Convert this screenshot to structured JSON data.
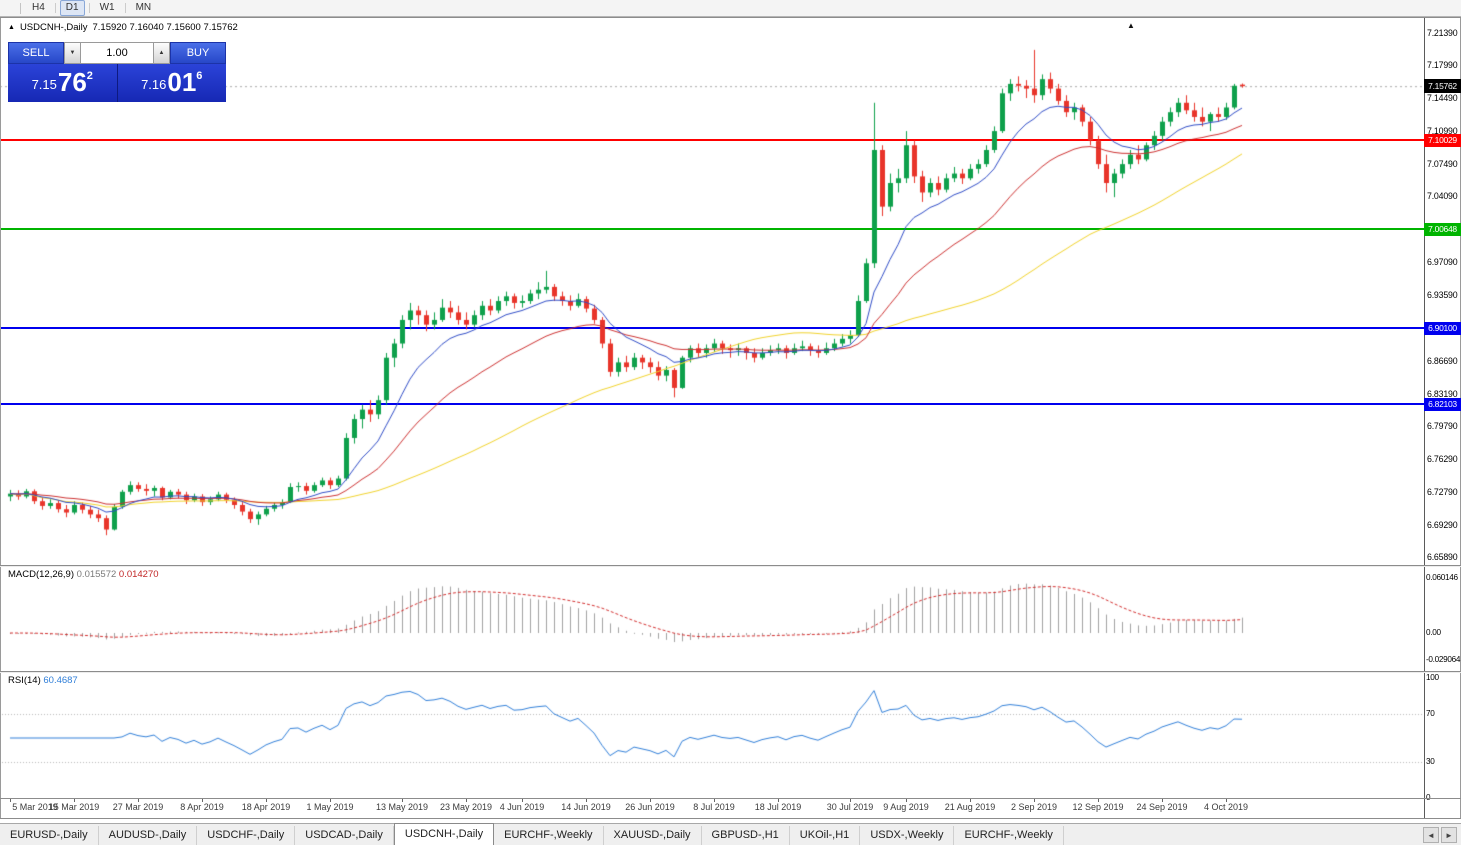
{
  "toolbar": {
    "timeframes": [
      {
        "label": "H4",
        "active": false
      },
      {
        "label": "D1",
        "active": true
      },
      {
        "label": "W1",
        "active": false
      },
      {
        "label": "MN",
        "active": false
      }
    ]
  },
  "chart_header": {
    "collapse_icon": "▲",
    "shift_marker": "▲",
    "symbol": "USDCNH-,Daily",
    "ohlc": "7.15920 7.16040 7.15600 7.15762"
  },
  "one_click": {
    "sell_label": "SELL",
    "buy_label": "BUY",
    "volume": "1.00",
    "spinner_down": "▼",
    "spinner_up": "▲",
    "sell_price": {
      "small": "7.15",
      "big": "76",
      "sup": "2"
    },
    "buy_price": {
      "small": "7.16",
      "big": "01",
      "sup": "6"
    }
  },
  "price_scale": {
    "ticks": [
      {
        "text": "7.21390",
        "value": 7.2139
      },
      {
        "text": "7.17990",
        "value": 7.1799
      },
      {
        "text": "7.14490",
        "value": 7.1449
      },
      {
        "text": "7.10990",
        "value": 7.1099
      },
      {
        "text": "7.07490",
        "value": 7.0749
      },
      {
        "text": "7.04090",
        "value": 7.0409
      },
      {
        "text": "7.00590",
        "value": 7.0059
      },
      {
        "text": "6.97090",
        "value": 6.9709
      },
      {
        "text": "6.93590",
        "value": 6.9359
      },
      {
        "text": "6.90090",
        "value": 6.9009
      },
      {
        "text": "6.86690",
        "value": 6.8669
      },
      {
        "text": "6.83190",
        "value": 6.8319
      },
      {
        "text": "6.79790",
        "value": 6.7979
      },
      {
        "text": "6.76290",
        "value": 6.7629
      },
      {
        "text": "6.72790",
        "value": 6.7279
      },
      {
        "text": "6.69290",
        "value": 6.6929
      },
      {
        "text": "6.65890",
        "value": 6.6589
      }
    ]
  },
  "levels": [
    {
      "price": 7.10029,
      "label": "7.10029",
      "color": "#ff0000"
    },
    {
      "price": 7.00648,
      "label": "7.00648",
      "color": "#00b400"
    },
    {
      "price": 6.901,
      "label": "6.90100",
      "color": "#0000ee"
    },
    {
      "price": 6.82103,
      "label": "6.82103",
      "color": "#0000ee"
    }
  ],
  "current_price": {
    "price": 7.15762,
    "label": "7.15762",
    "bg": "#000000"
  },
  "macd_panel": {
    "name": "MACD(12,26,9)",
    "value_main": "0.015572",
    "value_signal": "0.014270",
    "scale": [
      {
        "text": "0.060146",
        "value": 0.060146
      },
      {
        "text": "0.00",
        "value": 0
      },
      {
        "text": "-0.029064",
        "value": -0.029064
      }
    ]
  },
  "rsi_panel": {
    "name": "RSI(14)",
    "value": "60.4687",
    "scale": [
      {
        "text": "100",
        "value": 100
      },
      {
        "text": "70",
        "value": 70
      },
      {
        "text": "30",
        "value": 30
      },
      {
        "text": "0",
        "value": 0
      }
    ],
    "level_lines": [
      70,
      30
    ]
  },
  "date_axis": [
    {
      "label": "5 Mar 2019",
      "bar": 0
    },
    {
      "label": "15 Mar 2019",
      "bar": 8
    },
    {
      "label": "27 Mar 2019",
      "bar": 16
    },
    {
      "label": "8 Apr 2019",
      "bar": 24
    },
    {
      "label": "18 Apr 2019",
      "bar": 32
    },
    {
      "label": "1 May 2019",
      "bar": 40
    },
    {
      "label": "13 May 2019",
      "bar": 49
    },
    {
      "label": "23 May 2019",
      "bar": 57
    },
    {
      "label": "4 Jun 2019",
      "bar": 64
    },
    {
      "label": "14 Jun 2019",
      "bar": 72
    },
    {
      "label": "26 Jun 2019",
      "bar": 80
    },
    {
      "label": "8 Jul 2019",
      "bar": 88
    },
    {
      "label": "18 Jul 2019",
      "bar": 96
    },
    {
      "label": "30 Jul 2019",
      "bar": 105
    },
    {
      "label": "9 Aug 2019",
      "bar": 112
    },
    {
      "label": "21 Aug 2019",
      "bar": 120
    },
    {
      "label": "2 Sep 2019",
      "bar": 128
    },
    {
      "label": "12 Sep 2019",
      "bar": 136
    },
    {
      "label": "24 Sep 2019",
      "bar": 144
    },
    {
      "label": "4 Oct 2019",
      "bar": 152
    }
  ],
  "tabs": {
    "scroll_left": "◄",
    "scroll_right": "►",
    "items": [
      {
        "label": "EURUSD-,Daily",
        "active": false
      },
      {
        "label": "AUDUSD-,Daily",
        "active": false
      },
      {
        "label": "USDCHF-,Daily",
        "active": false
      },
      {
        "label": "USDCAD-,Daily",
        "active": false
      },
      {
        "label": "USDCNH-,Daily",
        "active": true
      },
      {
        "label": "EURCHF-,Weekly",
        "active": false
      },
      {
        "label": "XAUUSD-,Daily",
        "active": false
      },
      {
        "label": "GBPUSD-,H1",
        "active": false
      },
      {
        "label": "UKOil-,H1",
        "active": false
      },
      {
        "label": "USDX-,Weekly",
        "active": false
      },
      {
        "label": "EURCHF-,Weekly",
        "active": false
      }
    ]
  },
  "chart_data": {
    "type": "candlestick",
    "symbol": "USDCNH",
    "timeframe": "Daily",
    "price_range": {
      "min": 6.6589,
      "max": 7.2139
    },
    "style": {
      "bull": "#0ea04b",
      "bear": "#e8342a",
      "ma_fast": "#2e4bc6",
      "ma_mid": "#cc2f2f",
      "ma_slow": "#f0d22a",
      "macd_hist": "#a0a0a0",
      "macd_signal": "#d22d2d",
      "rsi_line": "#2f7ed8",
      "bid_line": "#aaaaaa"
    },
    "indicators": {
      "macd": {
        "fast": 12,
        "slow": 26,
        "signal": 9,
        "current_main": 0.015572,
        "current_signal": 0.01427
      },
      "rsi": {
        "period": 14,
        "current": 60.4687
      },
      "moving_averages": [
        {
          "type": "ema",
          "period": 10,
          "color": "#2e4bc6"
        },
        {
          "type": "ema",
          "period": 25,
          "color": "#cc2f2f"
        },
        {
          "type": "sma",
          "period": 52,
          "color": "#f0d22a"
        }
      ]
    },
    "horizontal_lines": [
      7.10029,
      7.00648,
      6.901,
      6.82103
    ],
    "candles": [
      [
        6.723,
        6.73,
        6.718,
        6.726
      ],
      [
        6.726,
        6.7295,
        6.7195,
        6.723
      ],
      [
        6.723,
        6.731,
        6.721,
        6.7285
      ],
      [
        6.7285,
        6.7305,
        6.715,
        6.718
      ],
      [
        6.718,
        6.722,
        6.709,
        6.713
      ],
      [
        6.713,
        6.72,
        6.71,
        6.716
      ],
      [
        6.716,
        6.7185,
        6.706,
        6.7095
      ],
      [
        6.7095,
        6.714,
        6.701,
        6.706
      ],
      [
        6.706,
        6.718,
        6.704,
        6.714
      ],
      [
        6.714,
        6.7165,
        6.705,
        6.709
      ],
      [
        6.709,
        6.713,
        6.7,
        6.704
      ],
      [
        6.704,
        6.709,
        6.696,
        6.7
      ],
      [
        6.7,
        6.703,
        6.682,
        6.688
      ],
      [
        6.688,
        6.715,
        6.687,
        6.712
      ],
      [
        6.712,
        6.73,
        6.71,
        6.728
      ],
      [
        6.728,
        6.739,
        6.725,
        6.735
      ],
      [
        6.735,
        6.738,
        6.728,
        6.731
      ],
      [
        6.731,
        6.736,
        6.724,
        6.729
      ],
      [
        6.729,
        6.7345,
        6.723,
        6.732
      ],
      [
        6.732,
        6.7335,
        6.719,
        6.722
      ],
      [
        6.722,
        6.73,
        6.72,
        6.728
      ],
      [
        6.728,
        6.731,
        6.721,
        6.725
      ],
      [
        6.725,
        6.728,
        6.715,
        6.719
      ],
      [
        6.719,
        6.726,
        6.717,
        6.723
      ],
      [
        6.723,
        6.7255,
        6.713,
        6.717
      ],
      [
        6.717,
        6.723,
        6.714,
        6.72
      ],
      [
        6.72,
        6.728,
        6.718,
        6.725
      ],
      [
        6.725,
        6.727,
        6.716,
        6.7195
      ],
      [
        6.7195,
        6.722,
        6.71,
        6.714
      ],
      [
        6.714,
        6.717,
        6.703,
        6.707
      ],
      [
        6.707,
        6.71,
        6.695,
        6.699
      ],
      [
        6.699,
        6.707,
        6.693,
        6.704
      ],
      [
        6.704,
        6.713,
        6.702,
        6.71
      ],
      [
        6.71,
        6.717,
        6.707,
        6.714
      ],
      [
        6.714,
        6.72,
        6.71,
        6.717
      ],
      [
        6.717,
        6.737,
        6.716,
        6.733
      ],
      [
        6.733,
        6.738,
        6.728,
        6.734
      ],
      [
        6.734,
        6.7375,
        6.725,
        6.729
      ],
      [
        6.729,
        6.738,
        6.727,
        6.735
      ],
      [
        6.735,
        6.743,
        6.733,
        6.74
      ],
      [
        6.74,
        6.743,
        6.731,
        6.735
      ],
      [
        6.735,
        6.745,
        6.733,
        6.742
      ],
      [
        6.742,
        6.79,
        6.74,
        6.785
      ],
      [
        6.785,
        6.81,
        6.779,
        6.805
      ],
      [
        6.805,
        6.82,
        6.795,
        6.815
      ],
      [
        6.815,
        6.825,
        6.802,
        6.81
      ],
      [
        6.81,
        6.83,
        6.805,
        6.825
      ],
      [
        6.825,
        6.875,
        6.82,
        6.87
      ],
      [
        6.87,
        6.89,
        6.86,
        6.885
      ],
      [
        6.885,
        6.915,
        6.88,
        6.91
      ],
      [
        6.91,
        6.928,
        6.9,
        6.92
      ],
      [
        6.92,
        6.925,
        6.905,
        6.915
      ],
      [
        6.915,
        6.92,
        6.898,
        6.905
      ],
      [
        6.905,
        6.918,
        6.9,
        6.91
      ],
      [
        6.91,
        6.932,
        6.908,
        6.923
      ],
      [
        6.923,
        6.93,
        6.912,
        6.918
      ],
      [
        6.918,
        6.925,
        6.905,
        6.91
      ],
      [
        6.91,
        6.918,
        6.9,
        6.905
      ],
      [
        6.905,
        6.92,
        6.902,
        6.915
      ],
      [
        6.915,
        6.93,
        6.91,
        6.925
      ],
      [
        6.925,
        6.932,
        6.915,
        6.92
      ],
      [
        6.92,
        6.935,
        6.917,
        6.93
      ],
      [
        6.93,
        6.94,
        6.925,
        6.935
      ],
      [
        6.935,
        6.938,
        6.922,
        6.928
      ],
      [
        6.928,
        6.936,
        6.923,
        6.93
      ],
      [
        6.93,
        6.942,
        6.927,
        6.938
      ],
      [
        6.938,
        6.95,
        6.932,
        6.942
      ],
      [
        6.942,
        6.962,
        6.938,
        6.945
      ],
      [
        6.945,
        6.948,
        6.93,
        6.935
      ],
      [
        6.935,
        6.94,
        6.925,
        6.93
      ],
      [
        6.93,
        6.936,
        6.92,
        6.925
      ],
      [
        6.925,
        6.938,
        6.923,
        6.932
      ],
      [
        6.932,
        6.935,
        6.918,
        6.922
      ],
      [
        6.922,
        6.926,
        6.906,
        6.91
      ],
      [
        6.91,
        6.913,
        6.88,
        6.885
      ],
      [
        6.885,
        6.89,
        6.85,
        6.855
      ],
      [
        6.855,
        6.87,
        6.85,
        6.865
      ],
      [
        6.865,
        6.872,
        6.855,
        6.86
      ],
      [
        6.86,
        6.875,
        6.857,
        6.87
      ],
      [
        6.87,
        6.873,
        6.858,
        6.865
      ],
      [
        6.865,
        6.87,
        6.854,
        6.86
      ],
      [
        6.86,
        6.866,
        6.846,
        6.851
      ],
      [
        6.851,
        6.861,
        6.845,
        6.857
      ],
      [
        6.857,
        6.859,
        6.828,
        6.838
      ],
      [
        6.838,
        6.872,
        6.837,
        6.87
      ],
      [
        6.87,
        6.883,
        6.865,
        6.88
      ],
      [
        6.88,
        6.885,
        6.87,
        6.875
      ],
      [
        6.875,
        6.884,
        6.87,
        6.88
      ],
      [
        6.88,
        6.89,
        6.876,
        6.885
      ],
      [
        6.885,
        6.888,
        6.874,
        6.88
      ],
      [
        6.88,
        6.884,
        6.87,
        6.878
      ],
      [
        6.878,
        6.885,
        6.872,
        6.88
      ],
      [
        6.88,
        6.882,
        6.868,
        6.875
      ],
      [
        6.875,
        6.88,
        6.865,
        6.87
      ],
      [
        6.87,
        6.88,
        6.868,
        6.875
      ],
      [
        6.875,
        6.883,
        6.872,
        6.878
      ],
      [
        6.878,
        6.885,
        6.874,
        6.88
      ],
      [
        6.88,
        6.883,
        6.869,
        6.875
      ],
      [
        6.875,
        6.885,
        6.873,
        6.88
      ],
      [
        6.88,
        6.888,
        6.877,
        6.882
      ],
      [
        6.882,
        6.885,
        6.872,
        6.878
      ],
      [
        6.878,
        6.883,
        6.87,
        6.875
      ],
      [
        6.875,
        6.886,
        6.873,
        6.88
      ],
      [
        6.88,
        6.89,
        6.877,
        6.885
      ],
      [
        6.885,
        6.895,
        6.882,
        6.89
      ],
      [
        6.89,
        6.899,
        6.885,
        6.894
      ],
      [
        6.894,
        6.936,
        6.892,
        6.93
      ],
      [
        6.93,
        6.975,
        6.928,
        6.97
      ],
      [
        6.97,
        7.14,
        6.965,
        7.09
      ],
      [
        7.09,
        7.095,
        7.02,
        7.03
      ],
      [
        7.03,
        7.065,
        7.025,
        7.055
      ],
      [
        7.055,
        7.07,
        7.045,
        7.06
      ],
      [
        7.06,
        7.11,
        7.055,
        7.095
      ],
      [
        7.095,
        7.1,
        7.055,
        7.062
      ],
      [
        7.062,
        7.068,
        7.035,
        7.045
      ],
      [
        7.045,
        7.06,
        7.04,
        7.055
      ],
      [
        7.055,
        7.062,
        7.042,
        7.048
      ],
      [
        7.048,
        7.065,
        7.045,
        7.06
      ],
      [
        7.06,
        7.072,
        7.056,
        7.065
      ],
      [
        7.065,
        7.07,
        7.054,
        7.06
      ],
      [
        7.06,
        7.075,
        7.058,
        7.07
      ],
      [
        7.07,
        7.08,
        7.065,
        7.075
      ],
      [
        7.075,
        7.095,
        7.072,
        7.09
      ],
      [
        7.09,
        7.115,
        7.087,
        7.11
      ],
      [
        7.11,
        7.155,
        7.108,
        7.15
      ],
      [
        7.15,
        7.165,
        7.142,
        7.16
      ],
      [
        7.16,
        7.168,
        7.152,
        7.158
      ],
      [
        7.158,
        7.164,
        7.145,
        7.155
      ],
      [
        7.155,
        7.196,
        7.14,
        7.148
      ],
      [
        7.148,
        7.17,
        7.143,
        7.165
      ],
      [
        7.165,
        7.172,
        7.15,
        7.155
      ],
      [
        7.155,
        7.16,
        7.138,
        7.142
      ],
      [
        7.142,
        7.148,
        7.125,
        7.13
      ],
      [
        7.13,
        7.14,
        7.122,
        7.135
      ],
      [
        7.135,
        7.138,
        7.115,
        7.12
      ],
      [
        7.12,
        7.125,
        7.095,
        7.1
      ],
      [
        7.1,
        7.105,
        7.07,
        7.075
      ],
      [
        7.075,
        7.085,
        7.045,
        7.055
      ],
      [
        7.055,
        7.07,
        7.04,
        7.065
      ],
      [
        7.065,
        7.08,
        7.06,
        7.075
      ],
      [
        7.075,
        7.09,
        7.07,
        7.085
      ],
      [
        7.085,
        7.095,
        7.075,
        7.08
      ],
      [
        7.08,
        7.098,
        7.078,
        7.095
      ],
      [
        7.095,
        7.11,
        7.09,
        7.105
      ],
      [
        7.105,
        7.125,
        7.1,
        7.12
      ],
      [
        7.12,
        7.135,
        7.115,
        7.13
      ],
      [
        7.13,
        7.145,
        7.125,
        7.14
      ],
      [
        7.14,
        7.148,
        7.128,
        7.132
      ],
      [
        7.132,
        7.14,
        7.12,
        7.125
      ],
      [
        7.125,
        7.135,
        7.115,
        7.12
      ],
      [
        7.12,
        7.13,
        7.11,
        7.128
      ],
      [
        7.128,
        7.135,
        7.12,
        7.125
      ],
      [
        7.125,
        7.14,
        7.122,
        7.135
      ],
      [
        7.135,
        7.16,
        7.133,
        7.158
      ],
      [
        7.1592,
        7.1604,
        7.156,
        7.1576
      ]
    ]
  }
}
